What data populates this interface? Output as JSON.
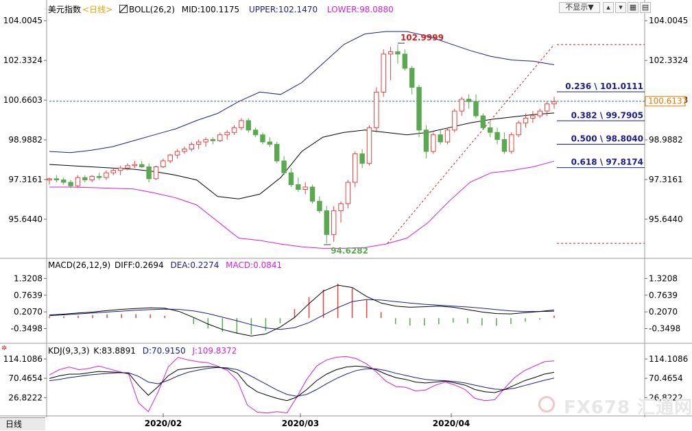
{
  "header": {
    "symbol": "美元指数",
    "period": "<日线>",
    "boll_name": "BOLL(26,2)",
    "mid": "MID:100.1175",
    "upper": "UPPER:102.1470",
    "lower": "LOWER:98.0880",
    "display_toggle": "不显示▼"
  },
  "macd_header": {
    "name": "MACD(26,12,9)",
    "diff": "DIFF:0.2694",
    "dea": "DEA:0.2274",
    "macd": "MACD:0.0841"
  },
  "kdj_header": {
    "name": "KDJ(9,3,3)",
    "k": "K:83.8891",
    "d": "D:70.9150",
    "j": "J:109.8372"
  },
  "bottom": {
    "period_tab": "日线",
    "dates": [
      "2020/02",
      "2020/03",
      "2020/04"
    ]
  },
  "watermark": "FX678 汇通网",
  "colors": {
    "up": "#e8403b",
    "down": "#5aa84f",
    "mid": "#000000",
    "upper": "#1c1c8c",
    "lower": "#d61fd6",
    "fib": "#d11f1f",
    "price_line": "#2a7a7a"
  },
  "chart_data": [
    {
      "type": "candlestick",
      "title": "美元指数 <日线>",
      "y_ticks": [
        "104.0045",
        "102.3324",
        "100.6603",
        "98.9882",
        "97.3161",
        "95.6440"
      ],
      "ylim": [
        94.2,
        104.3
      ],
      "current_price": "100.6137",
      "annotations": {
        "high": "102.9999",
        "low": "94.6282"
      },
      "fibonacci": [
        {
          "label": "0.236 \\ 101.0111",
          "value": 101.0111
        },
        {
          "label": "0.382 \\ 99.7905",
          "value": 99.7905
        },
        {
          "label": "0.500 \\ 98.8040",
          "value": 98.804
        },
        {
          "label": "0.618 \\ 97.8174",
          "value": 97.8174
        }
      ],
      "fib_top": 103.0,
      "fib_bottom": 94.63,
      "candles": [
        [
          97.3,
          97.4,
          97.1,
          97.35
        ],
        [
          97.35,
          97.5,
          97.2,
          97.3
        ],
        [
          97.3,
          97.4,
          97.1,
          97.2
        ],
        [
          97.2,
          97.3,
          96.95,
          97.05
        ],
        [
          97.05,
          97.5,
          97.0,
          97.4
        ],
        [
          97.4,
          97.5,
          97.2,
          97.3
        ],
        [
          97.3,
          97.5,
          97.2,
          97.45
        ],
        [
          97.45,
          97.6,
          97.3,
          97.4
        ],
        [
          97.4,
          97.7,
          97.3,
          97.6
        ],
        [
          97.6,
          97.8,
          97.5,
          97.7
        ],
        [
          97.7,
          97.9,
          97.5,
          97.8
        ],
        [
          97.8,
          98.0,
          97.7,
          97.9
        ],
        [
          97.9,
          98.1,
          97.8,
          97.95
        ],
        [
          97.95,
          98.1,
          97.8,
          97.85
        ],
        [
          97.85,
          98.0,
          97.2,
          97.35
        ],
        [
          97.35,
          97.9,
          97.3,
          97.85
        ],
        [
          97.85,
          98.2,
          97.8,
          98.1
        ],
        [
          98.1,
          98.4,
          98.0,
          98.35
        ],
        [
          98.35,
          98.6,
          98.2,
          98.5
        ],
        [
          98.5,
          98.7,
          98.4,
          98.6
        ],
        [
          98.6,
          98.9,
          98.5,
          98.8
        ],
        [
          98.8,
          99.0,
          98.6,
          98.9
        ],
        [
          98.9,
          99.1,
          98.7,
          99.0
        ],
        [
          99.0,
          99.1,
          98.8,
          98.95
        ],
        [
          98.95,
          99.3,
          98.9,
          99.2
        ],
        [
          99.2,
          99.4,
          99.0,
          99.3
        ],
        [
          99.3,
          99.6,
          99.2,
          99.5
        ],
        [
          99.5,
          99.9,
          99.4,
          99.8
        ],
        [
          99.8,
          99.9,
          99.3,
          99.4
        ],
        [
          99.4,
          99.5,
          99.1,
          99.2
        ],
        [
          99.2,
          99.3,
          98.8,
          98.9
        ],
        [
          98.9,
          99.1,
          98.7,
          98.8
        ],
        [
          98.8,
          98.9,
          98.0,
          98.1
        ],
        [
          98.1,
          98.3,
          97.5,
          97.6
        ],
        [
          97.6,
          97.8,
          97.0,
          97.1
        ],
        [
          97.1,
          97.4,
          96.8,
          96.9
        ],
        [
          96.9,
          97.2,
          96.7,
          97.0
        ],
        [
          97.0,
          97.1,
          96.3,
          96.4
        ],
        [
          96.4,
          96.6,
          95.9,
          96.0
        ],
        [
          96.0,
          96.2,
          94.63,
          95.0
        ],
        [
          95.0,
          96.2,
          94.7,
          96.0
        ],
        [
          96.0,
          96.4,
          95.5,
          96.3
        ],
        [
          96.3,
          97.3,
          96.1,
          97.2
        ],
        [
          97.2,
          98.5,
          97.0,
          98.4
        ],
        [
          98.4,
          98.6,
          97.8,
          98.0
        ],
        [
          98.0,
          99.6,
          97.9,
          99.5
        ],
        [
          99.5,
          101.2,
          99.3,
          101.0
        ],
        [
          101.0,
          102.8,
          100.8,
          102.6
        ],
        [
          102.6,
          102.9,
          101.5,
          102.7
        ],
        [
          102.7,
          103.0,
          102.2,
          102.6
        ],
        [
          102.6,
          102.8,
          101.9,
          102.0
        ],
        [
          102.0,
          102.1,
          100.9,
          101.2
        ],
        [
          101.2,
          101.3,
          99.1,
          99.4
        ],
        [
          99.4,
          99.6,
          98.2,
          98.5
        ],
        [
          98.5,
          99.3,
          98.4,
          99.2
        ],
        [
          99.2,
          99.4,
          98.8,
          98.9
        ],
        [
          98.9,
          99.5,
          98.8,
          99.4
        ],
        [
          99.4,
          100.3,
          99.3,
          100.2
        ],
        [
          100.2,
          100.8,
          100.0,
          100.7
        ],
        [
          100.7,
          100.9,
          100.3,
          100.6
        ],
        [
          100.6,
          100.9,
          99.9,
          100.0
        ],
        [
          100.0,
          100.1,
          99.4,
          99.5
        ],
        [
          99.5,
          99.8,
          99.1,
          99.3
        ],
        [
          99.3,
          99.5,
          98.8,
          99.0
        ],
        [
          99.0,
          99.3,
          98.4,
          98.5
        ],
        [
          98.5,
          99.3,
          98.4,
          99.2
        ],
        [
          99.2,
          99.8,
          99.1,
          99.7
        ],
        [
          99.7,
          100.1,
          99.5,
          99.9
        ],
        [
          99.9,
          100.2,
          99.7,
          100.0
        ],
        [
          100.0,
          100.3,
          99.9,
          100.2
        ],
        [
          100.2,
          100.6,
          100.0,
          100.5
        ],
        [
          100.5,
          100.8,
          100.3,
          100.6
        ]
      ],
      "mid": [
        97.95,
        97.9,
        97.85,
        97.8,
        97.75,
        97.65,
        97.5,
        97.3,
        96.6,
        96.5,
        96.7,
        97.4,
        98.5,
        99.1,
        99.3,
        99.4,
        99.3,
        99.2,
        99.3,
        99.5,
        99.7,
        99.85,
        99.95,
        100.05,
        100.12
      ],
      "upper": [
        98.5,
        98.45,
        98.55,
        98.7,
        98.95,
        99.2,
        99.45,
        99.8,
        100.1,
        100.6,
        101.0,
        100.9,
        101.4,
        102.2,
        103.0,
        103.45,
        103.55,
        103.55,
        103.35,
        103.05,
        102.75,
        102.5,
        102.35,
        102.3,
        102.15
      ],
      "lower": [
        97.0,
        97.0,
        96.98,
        96.95,
        96.92,
        96.75,
        96.55,
        96.25,
        95.55,
        94.85,
        94.75,
        94.6,
        94.48,
        94.42,
        94.42,
        94.45,
        94.6,
        94.85,
        95.5,
        96.4,
        97.2,
        97.6,
        97.7,
        97.85,
        98.09
      ]
    },
    {
      "type": "bar+line",
      "title": "MACD(26,12,9)",
      "y_ticks": [
        "1.3208",
        "0.7639",
        "0.2070",
        "-0.3498"
      ],
      "ylim": [
        -0.75,
        1.65
      ],
      "diff": [
        0.1,
        0.13,
        0.17,
        0.2,
        0.25,
        0.29,
        0.32,
        0.34,
        0.33,
        0.22,
        0.02,
        -0.2,
        -0.38,
        -0.5,
        -0.6,
        -0.53,
        -0.3,
        0.02,
        0.48,
        0.9,
        1.1,
        1.02,
        0.72,
        0.5,
        0.4,
        0.36,
        0.38,
        0.4,
        0.36,
        0.28,
        0.2,
        0.15,
        0.14,
        0.18,
        0.22,
        0.2694
      ],
      "dea": [
        0.08,
        0.11,
        0.14,
        0.17,
        0.2,
        0.23,
        0.26,
        0.28,
        0.3,
        0.29,
        0.24,
        0.15,
        0.03,
        -0.09,
        -0.22,
        -0.33,
        -0.38,
        -0.32,
        -0.15,
        0.1,
        0.35,
        0.55,
        0.62,
        0.6,
        0.55,
        0.5,
        0.46,
        0.43,
        0.4,
        0.37,
        0.33,
        0.28,
        0.24,
        0.22,
        0.22,
        0.2274
      ],
      "hist": [
        0.06,
        0.06,
        0.08,
        0.1,
        0.12,
        0.13,
        0.13,
        0.12,
        0.08,
        0.0,
        -0.2,
        -0.35,
        -0.45,
        -0.52,
        -0.55,
        -0.42,
        -0.18,
        0.3,
        0.7,
        0.95,
        1.15,
        1.0,
        0.6,
        0.2,
        -0.2,
        -0.25,
        -0.25,
        -0.2,
        -0.15,
        -0.18,
        -0.25,
        -0.26,
        -0.2,
        -0.12,
        -0.05,
        0.0841
      ]
    },
    {
      "type": "line",
      "title": "KDJ(9,3,3)",
      "y_ticks": [
        "114.1086",
        "70.4654",
        "26.8222"
      ],
      "ylim": [
        -10,
        128
      ],
      "k": [
        70,
        76,
        80,
        80,
        83,
        86,
        85,
        84,
        82,
        55,
        32,
        52,
        76,
        90,
        93,
        95,
        97,
        96,
        92,
        82,
        55,
        40,
        32,
        25,
        20,
        28,
        45,
        65,
        80,
        90,
        96,
        98,
        96,
        90,
        80,
        72,
        68,
        62,
        60,
        62,
        64,
        60,
        55,
        45,
        40,
        38,
        45,
        55,
        65,
        72,
        80,
        83.8891
      ],
      "d": [
        65,
        68,
        72,
        75,
        78,
        80,
        82,
        83,
        83,
        75,
        62,
        58,
        66,
        76,
        84,
        89,
        93,
        95,
        94,
        90,
        80,
        68,
        56,
        44,
        34,
        30,
        34,
        45,
        58,
        70,
        80,
        88,
        92,
        92,
        88,
        82,
        77,
        72,
        68,
        66,
        65,
        63,
        60,
        55,
        50,
        46,
        45,
        48,
        54,
        60,
        66,
        70.915
      ],
      "j": [
        78,
        90,
        96,
        90,
        93,
        98,
        92,
        86,
        80,
        15,
        -5,
        40,
        96,
        118,
        112,
        108,
        106,
        98,
        88,
        65,
        10,
        -6,
        -8,
        -5,
        -8,
        28,
        68,
        98,
        112,
        118,
        120,
        115,
        104,
        86,
        64,
        52,
        50,
        42,
        44,
        55,
        62,
        55,
        45,
        25,
        20,
        22,
        48,
        72,
        88,
        98,
        108,
        109.8372
      ]
    }
  ]
}
